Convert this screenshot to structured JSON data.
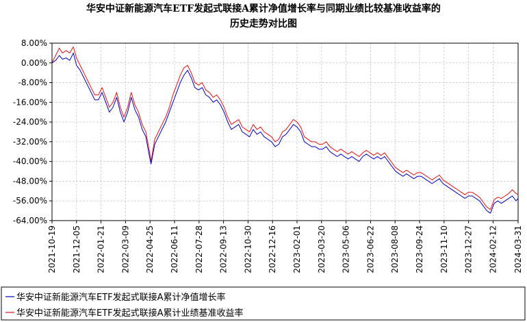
{
  "chart_data": {
    "type": "line",
    "title_lines": [
      "华安中证新能源汽车ETF发起式联接A累计净值增长率与同期业绩比较基准收益率的",
      "历史走势对比图"
    ],
    "ylim": [
      -0.64,
      0.08
    ],
    "y_ticks": [
      "8.00%",
      "0.00%",
      "-8.00%",
      "-16.00%",
      "-24.00%",
      "-32.00%",
      "-40.00%",
      "-48.00%",
      "-56.00%",
      "-64.00%"
    ],
    "x_ticks": [
      "2021-10-19",
      "2021-12-05",
      "2022-01-21",
      "2022-03-09",
      "2022-04-25",
      "2022-06-11",
      "2022-07-28",
      "2022-09-13",
      "2022-10-30",
      "2022-12-16",
      "2023-02-01",
      "2023-03-20",
      "2023-05-06",
      "2023-06-22",
      "2023-08-08",
      "2023-09-24",
      "2023-11-10",
      "2023-12-27",
      "2024-02-12",
      "2024-03-31"
    ],
    "grid": true,
    "legend_position": "bottom",
    "series": [
      {
        "name": "华安中证新能源汽车ETF发起式联接A累计净值增长率",
        "color": "#0000cc",
        "points": [
          [
            "2021-10-19",
            0.0
          ],
          [
            "2021-10-26",
            0.01
          ],
          [
            "2021-11-02",
            0.03
          ],
          [
            "2021-11-08",
            0.015
          ],
          [
            "2021-11-15",
            0.02
          ],
          [
            "2021-11-22",
            0.01
          ],
          [
            "2021-11-29",
            0.04
          ],
          [
            "2021-12-05",
            -0.01
          ],
          [
            "2021-12-12",
            -0.03
          ],
          [
            "2021-12-19",
            -0.06
          ],
          [
            "2021-12-26",
            -0.09
          ],
          [
            "2022-01-02",
            -0.12
          ],
          [
            "2022-01-09",
            -0.15
          ],
          [
            "2022-01-16",
            -0.15
          ],
          [
            "2022-01-23",
            -0.12
          ],
          [
            "2022-01-30",
            -0.16
          ],
          [
            "2022-02-06",
            -0.2
          ],
          [
            "2022-02-13",
            -0.18
          ],
          [
            "2022-02-20",
            -0.14
          ],
          [
            "2022-02-27",
            -0.2
          ],
          [
            "2022-03-06",
            -0.24
          ],
          [
            "2022-03-13",
            -0.2
          ],
          [
            "2022-03-20",
            -0.14
          ],
          [
            "2022-03-27",
            -0.19
          ],
          [
            "2022-04-03",
            -0.22
          ],
          [
            "2022-04-10",
            -0.27
          ],
          [
            "2022-04-17",
            -0.3
          ],
          [
            "2022-04-24",
            -0.38
          ],
          [
            "2022-04-27",
            -0.41
          ],
          [
            "2022-05-04",
            -0.33
          ],
          [
            "2022-05-11",
            -0.3
          ],
          [
            "2022-05-18",
            -0.27
          ],
          [
            "2022-05-25",
            -0.24
          ],
          [
            "2022-06-01",
            -0.2
          ],
          [
            "2022-06-08",
            -0.16
          ],
          [
            "2022-06-15",
            -0.12
          ],
          [
            "2022-06-22",
            -0.08
          ],
          [
            "2022-06-29",
            -0.05
          ],
          [
            "2022-07-06",
            -0.03
          ],
          [
            "2022-07-13",
            -0.06
          ],
          [
            "2022-07-20",
            -0.1
          ],
          [
            "2022-07-27",
            -0.11
          ],
          [
            "2022-08-03",
            -0.1
          ],
          [
            "2022-08-10",
            -0.13
          ],
          [
            "2022-08-17",
            -0.14
          ],
          [
            "2022-08-24",
            -0.16
          ],
          [
            "2022-08-31",
            -0.15
          ],
          [
            "2022-09-07",
            -0.17
          ],
          [
            "2022-09-14",
            -0.2
          ],
          [
            "2022-09-21",
            -0.24
          ],
          [
            "2022-09-28",
            -0.27
          ],
          [
            "2022-10-05",
            -0.26
          ],
          [
            "2022-10-12",
            -0.25
          ],
          [
            "2022-10-19",
            -0.28
          ],
          [
            "2022-10-26",
            -0.29
          ],
          [
            "2022-11-02",
            -0.3
          ],
          [
            "2022-11-09",
            -0.27
          ],
          [
            "2022-11-16",
            -0.29
          ],
          [
            "2022-11-23",
            -0.28
          ],
          [
            "2022-11-30",
            -0.3
          ],
          [
            "2022-12-07",
            -0.31
          ],
          [
            "2022-12-14",
            -0.32
          ],
          [
            "2022-12-21",
            -0.34
          ],
          [
            "2022-12-28",
            -0.33
          ],
          [
            "2023-01-04",
            -0.3
          ],
          [
            "2023-01-11",
            -0.29
          ],
          [
            "2023-01-18",
            -0.27
          ],
          [
            "2023-01-25",
            -0.25
          ],
          [
            "2023-02-01",
            -0.26
          ],
          [
            "2023-02-08",
            -0.28
          ],
          [
            "2023-02-15",
            -0.32
          ],
          [
            "2023-02-22",
            -0.33
          ],
          [
            "2023-03-01",
            -0.34
          ],
          [
            "2023-03-08",
            -0.34
          ],
          [
            "2023-03-15",
            -0.35
          ],
          [
            "2023-03-22",
            -0.35
          ],
          [
            "2023-03-29",
            -0.34
          ],
          [
            "2023-04-05",
            -0.36
          ],
          [
            "2023-04-12",
            -0.37
          ],
          [
            "2023-04-19",
            -0.38
          ],
          [
            "2023-04-26",
            -0.37
          ],
          [
            "2023-05-03",
            -0.38
          ],
          [
            "2023-05-10",
            -0.39
          ],
          [
            "2023-05-17",
            -0.38
          ],
          [
            "2023-05-24",
            -0.39
          ],
          [
            "2023-05-31",
            -0.4
          ],
          [
            "2023-06-07",
            -0.38
          ],
          [
            "2023-06-14",
            -0.37
          ],
          [
            "2023-06-21",
            -0.38
          ],
          [
            "2023-06-28",
            -0.39
          ],
          [
            "2023-07-05",
            -0.38
          ],
          [
            "2023-07-12",
            -0.39
          ],
          [
            "2023-07-19",
            -0.38
          ],
          [
            "2023-07-26",
            -0.4
          ],
          [
            "2023-08-02",
            -0.42
          ],
          [
            "2023-08-09",
            -0.44
          ],
          [
            "2023-08-16",
            -0.45
          ],
          [
            "2023-08-23",
            -0.46
          ],
          [
            "2023-08-30",
            -0.45
          ],
          [
            "2023-09-06",
            -0.46
          ],
          [
            "2023-09-13",
            -0.47
          ],
          [
            "2023-09-20",
            -0.46
          ],
          [
            "2023-09-27",
            -0.46
          ],
          [
            "2023-10-04",
            -0.47
          ],
          [
            "2023-10-11",
            -0.48
          ],
          [
            "2023-10-18",
            -0.49
          ],
          [
            "2023-10-25",
            -0.48
          ],
          [
            "2023-11-01",
            -0.47
          ],
          [
            "2023-11-08",
            -0.49
          ],
          [
            "2023-11-15",
            -0.5
          ],
          [
            "2023-11-22",
            -0.51
          ],
          [
            "2023-11-29",
            -0.52
          ],
          [
            "2023-12-06",
            -0.53
          ],
          [
            "2023-12-13",
            -0.54
          ],
          [
            "2023-12-20",
            -0.55
          ],
          [
            "2023-12-27",
            -0.54
          ],
          [
            "2024-01-03",
            -0.54
          ],
          [
            "2024-01-10",
            -0.55
          ],
          [
            "2024-01-17",
            -0.56
          ],
          [
            "2024-01-24",
            -0.58
          ],
          [
            "2024-01-31",
            -0.6
          ],
          [
            "2024-02-07",
            -0.61
          ],
          [
            "2024-02-14",
            -0.57
          ],
          [
            "2024-02-21",
            -0.56
          ],
          [
            "2024-02-28",
            -0.57
          ],
          [
            "2024-03-06",
            -0.56
          ],
          [
            "2024-03-13",
            -0.55
          ],
          [
            "2024-03-20",
            -0.54
          ],
          [
            "2024-03-27",
            -0.56
          ],
          [
            "2024-03-31",
            -0.55
          ]
        ]
      },
      {
        "name": "华安中证新能源汽车ETF发起式联接A累计业绩基准收益率",
        "color": "#e81010",
        "points": [
          [
            "2021-10-19",
            0.0
          ],
          [
            "2021-10-26",
            0.03
          ],
          [
            "2021-11-02",
            0.06
          ],
          [
            "2021-11-08",
            0.04
          ],
          [
            "2021-11-15",
            0.05
          ],
          [
            "2021-11-22",
            0.04
          ],
          [
            "2021-11-29",
            0.065
          ],
          [
            "2021-12-05",
            0.02
          ],
          [
            "2021-12-12",
            -0.01
          ],
          [
            "2021-12-19",
            -0.04
          ],
          [
            "2021-12-26",
            -0.07
          ],
          [
            "2022-01-02",
            -0.1
          ],
          [
            "2022-01-09",
            -0.13
          ],
          [
            "2022-01-16",
            -0.13
          ],
          [
            "2022-01-23",
            -0.1
          ],
          [
            "2022-01-30",
            -0.14
          ],
          [
            "2022-02-06",
            -0.18
          ],
          [
            "2022-02-13",
            -0.16
          ],
          [
            "2022-02-20",
            -0.12
          ],
          [
            "2022-02-27",
            -0.18
          ],
          [
            "2022-03-06",
            -0.22
          ],
          [
            "2022-03-13",
            -0.18
          ],
          [
            "2022-03-20",
            -0.12
          ],
          [
            "2022-03-27",
            -0.17
          ],
          [
            "2022-04-03",
            -0.2
          ],
          [
            "2022-04-10",
            -0.25
          ],
          [
            "2022-04-17",
            -0.28
          ],
          [
            "2022-04-24",
            -0.36
          ],
          [
            "2022-04-27",
            -0.4
          ],
          [
            "2022-05-04",
            -0.31
          ],
          [
            "2022-05-11",
            -0.28
          ],
          [
            "2022-05-18",
            -0.25
          ],
          [
            "2022-05-25",
            -0.22
          ],
          [
            "2022-06-01",
            -0.18
          ],
          [
            "2022-06-08",
            -0.13
          ],
          [
            "2022-06-15",
            -0.09
          ],
          [
            "2022-06-22",
            -0.05
          ],
          [
            "2022-06-29",
            -0.02
          ],
          [
            "2022-07-06",
            -0.01
          ],
          [
            "2022-07-13",
            -0.04
          ],
          [
            "2022-07-20",
            -0.08
          ],
          [
            "2022-07-27",
            -0.09
          ],
          [
            "2022-08-03",
            -0.08
          ],
          [
            "2022-08-10",
            -0.11
          ],
          [
            "2022-08-17",
            -0.12
          ],
          [
            "2022-08-24",
            -0.14
          ],
          [
            "2022-08-31",
            -0.13
          ],
          [
            "2022-09-07",
            -0.15
          ],
          [
            "2022-09-14",
            -0.18
          ],
          [
            "2022-09-21",
            -0.22
          ],
          [
            "2022-09-28",
            -0.25
          ],
          [
            "2022-10-05",
            -0.24
          ],
          [
            "2022-10-12",
            -0.23
          ],
          [
            "2022-10-19",
            -0.26
          ],
          [
            "2022-10-26",
            -0.27
          ],
          [
            "2022-11-02",
            -0.28
          ],
          [
            "2022-11-09",
            -0.25
          ],
          [
            "2022-11-16",
            -0.27
          ],
          [
            "2022-11-23",
            -0.26
          ],
          [
            "2022-11-30",
            -0.28
          ],
          [
            "2022-12-07",
            -0.29
          ],
          [
            "2022-12-14",
            -0.3
          ],
          [
            "2022-12-21",
            -0.32
          ],
          [
            "2022-12-28",
            -0.31
          ],
          [
            "2023-01-04",
            -0.28
          ],
          [
            "2023-01-11",
            -0.27
          ],
          [
            "2023-01-18",
            -0.25
          ],
          [
            "2023-01-25",
            -0.23
          ],
          [
            "2023-02-01",
            -0.24
          ],
          [
            "2023-02-08",
            -0.26
          ],
          [
            "2023-02-15",
            -0.3
          ],
          [
            "2023-02-22",
            -0.31
          ],
          [
            "2023-03-01",
            -0.32
          ],
          [
            "2023-03-08",
            -0.32
          ],
          [
            "2023-03-15",
            -0.33
          ],
          [
            "2023-03-22",
            -0.33
          ],
          [
            "2023-03-29",
            -0.32
          ],
          [
            "2023-04-05",
            -0.34
          ],
          [
            "2023-04-12",
            -0.35
          ],
          [
            "2023-04-19",
            -0.36
          ],
          [
            "2023-04-26",
            -0.35
          ],
          [
            "2023-05-03",
            -0.36
          ],
          [
            "2023-05-10",
            -0.37
          ],
          [
            "2023-05-17",
            -0.36
          ],
          [
            "2023-05-24",
            -0.37
          ],
          [
            "2023-05-31",
            -0.38
          ],
          [
            "2023-06-07",
            -0.365
          ],
          [
            "2023-06-14",
            -0.355
          ],
          [
            "2023-06-21",
            -0.365
          ],
          [
            "2023-06-28",
            -0.375
          ],
          [
            "2023-07-05",
            -0.365
          ],
          [
            "2023-07-12",
            -0.375
          ],
          [
            "2023-07-19",
            -0.365
          ],
          [
            "2023-07-26",
            -0.385
          ],
          [
            "2023-08-02",
            -0.405
          ],
          [
            "2023-08-09",
            -0.425
          ],
          [
            "2023-08-16",
            -0.435
          ],
          [
            "2023-08-23",
            -0.445
          ],
          [
            "2023-08-30",
            -0.435
          ],
          [
            "2023-09-06",
            -0.445
          ],
          [
            "2023-09-13",
            -0.455
          ],
          [
            "2023-09-20",
            -0.445
          ],
          [
            "2023-09-27",
            -0.445
          ],
          [
            "2023-10-04",
            -0.455
          ],
          [
            "2023-10-11",
            -0.465
          ],
          [
            "2023-10-18",
            -0.475
          ],
          [
            "2023-10-25",
            -0.465
          ],
          [
            "2023-11-01",
            -0.455
          ],
          [
            "2023-11-08",
            -0.475
          ],
          [
            "2023-11-15",
            -0.485
          ],
          [
            "2023-11-22",
            -0.495
          ],
          [
            "2023-11-29",
            -0.505
          ],
          [
            "2023-12-06",
            -0.515
          ],
          [
            "2023-12-13",
            -0.525
          ],
          [
            "2023-12-20",
            -0.535
          ],
          [
            "2023-12-27",
            -0.525
          ],
          [
            "2024-01-03",
            -0.525
          ],
          [
            "2024-01-10",
            -0.535
          ],
          [
            "2024-01-17",
            -0.545
          ],
          [
            "2024-01-24",
            -0.565
          ],
          [
            "2024-01-31",
            -0.585
          ],
          [
            "2024-02-07",
            -0.595
          ],
          [
            "2024-02-14",
            -0.555
          ],
          [
            "2024-02-21",
            -0.545
          ],
          [
            "2024-02-28",
            -0.55
          ],
          [
            "2024-03-06",
            -0.54
          ],
          [
            "2024-03-13",
            -0.53
          ],
          [
            "2024-03-20",
            -0.515
          ],
          [
            "2024-03-27",
            -0.53
          ],
          [
            "2024-03-31",
            -0.535
          ]
        ]
      }
    ]
  }
}
